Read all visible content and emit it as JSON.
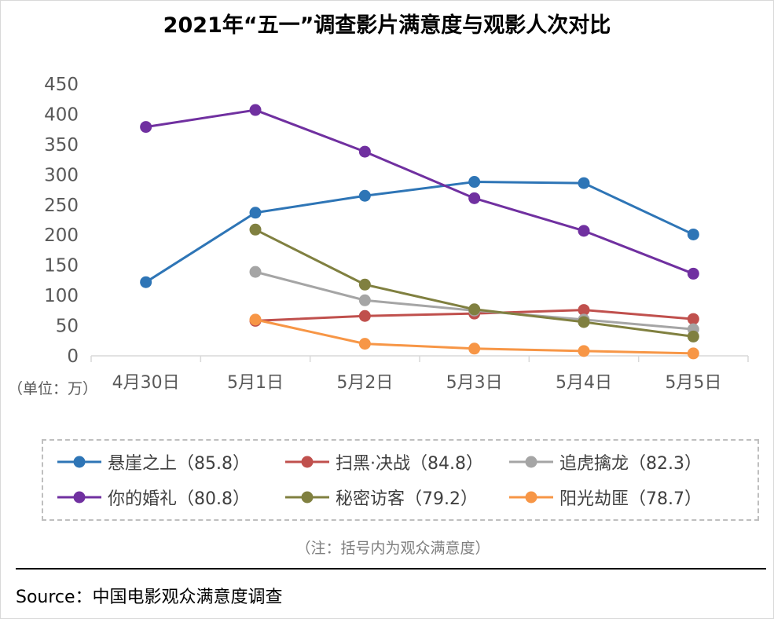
{
  "page": {
    "title": "2021年“五一”调查影片满意度与观影人次对比",
    "unit_label": "（单位：万）",
    "note": "（注：括号内为观众满意度）",
    "source": "Source：中国电影观众满意度调查"
  },
  "chart_data": {
    "type": "line",
    "title": "2021年“五一”调查影片满意度与观影人次对比",
    "categories": [
      "4月30日",
      "5月1日",
      "5月2日",
      "5月3日",
      "5月4日",
      "5月5日"
    ],
    "ylim": [
      0,
      450
    ],
    "yticks": [
      0,
      50,
      100,
      150,
      200,
      250,
      300,
      350,
      400,
      450
    ],
    "grid": false,
    "legend_position": "bottom",
    "series": [
      {
        "name": "悬崖之上（85.8）",
        "color": "#2e75b6",
        "values": [
          122,
          237,
          265,
          288,
          286,
          201
        ]
      },
      {
        "name": "扫黑·决战（84.8）",
        "color": "#c0504d",
        "values": [
          null,
          58,
          66,
          70,
          76,
          61
        ]
      },
      {
        "name": "追虎擒龙（82.3）",
        "color": "#a5a5a5",
        "values": [
          null,
          139,
          92,
          75,
          60,
          44
        ]
      },
      {
        "name": "你的婚礼（80.8）",
        "color": "#7030a0",
        "values": [
          379,
          407,
          338,
          261,
          207,
          136
        ]
      },
      {
        "name": "秘密访客（79.2）",
        "color": "#808040",
        "values": [
          null,
          209,
          118,
          77,
          56,
          32
        ]
      },
      {
        "name": "阳光劫匪（78.7）",
        "color": "#f79646",
        "values": [
          null,
          60,
          20,
          12,
          8,
          4
        ]
      }
    ]
  }
}
